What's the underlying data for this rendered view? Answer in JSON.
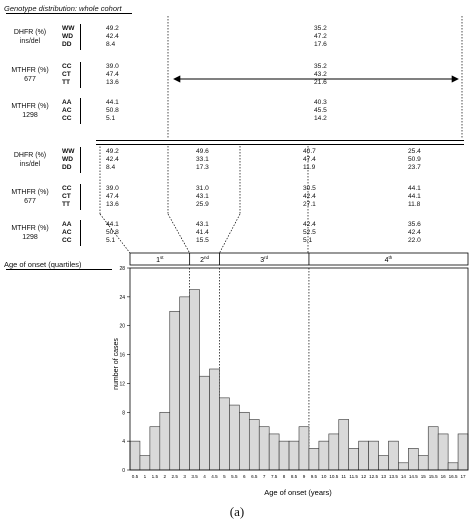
{
  "header": {
    "title": "Genotype distribution: whole cohort",
    "onset_label": "Age of onset (quartiles)"
  },
  "groups": [
    {
      "name_line1": "DHFR (%)",
      "name_line2": "ins/del",
      "genotypes": [
        "WW",
        "WD",
        "DD"
      ]
    },
    {
      "name_line1": "MTHFR (%)",
      "name_line2": "677",
      "genotypes": [
        "CC",
        "CT",
        "TT"
      ]
    },
    {
      "name_line1": "MTHFR (%)",
      "name_line2": "1298",
      "genotypes": [
        "AA",
        "AC",
        "CC"
      ]
    }
  ],
  "top_table": {
    "left": [
      [
        "49.2",
        "42.4",
        "8.4"
      ],
      [
        "39.0",
        "47.4",
        "13.6"
      ],
      [
        "44.1",
        "50.8",
        "5.1"
      ]
    ],
    "right": [
      [
        "35.2",
        "47.2",
        "17.6"
      ],
      [
        "35.2",
        "43.2",
        "21.6"
      ],
      [
        "40.3",
        "45.5",
        "14.2"
      ]
    ]
  },
  "bottom_table": {
    "columns": [
      [
        [
          "49.2",
          "42.4",
          "8.4"
        ],
        [
          "39.0",
          "47.4",
          "13.6"
        ],
        [
          "44.1",
          "50.8",
          "5.1"
        ]
      ],
      [
        [
          "49.6",
          "33.1",
          "17.3"
        ],
        [
          "31.0",
          "43.1",
          "25.9"
        ],
        [
          "43.1",
          "41.4",
          "15.5"
        ]
      ],
      [
        [
          "40.7",
          "47.4",
          "11.9"
        ],
        [
          "30.5",
          "42.4",
          "27.1"
        ],
        [
          "42.4",
          "52.5",
          "5.1"
        ]
      ],
      [
        [
          "25.4",
          "50.9",
          "23.7"
        ],
        [
          "44.1",
          "44.1",
          "11.8"
        ],
        [
          "35.6",
          "42.4",
          "22.0"
        ]
      ]
    ]
  },
  "quartiles": [
    {
      "base": "1",
      "sup": "st"
    },
    {
      "base": "2",
      "sup": "nd"
    },
    {
      "base": "3",
      "sup": "rd"
    },
    {
      "base": "4",
      "sup": "th"
    }
  ],
  "caption": "(a)",
  "chart_data": {
    "type": "bar",
    "xlabel": "Age of onset (years)",
    "ylabel": "number of cases",
    "ylim": [
      0,
      28
    ],
    "yticks": [
      0,
      4,
      8,
      12,
      16,
      20,
      24,
      28
    ],
    "grid": false,
    "categories": [
      "0.5",
      "1",
      "1.5",
      "2",
      "2.5",
      "3",
      "3.5",
      "4",
      "4.5",
      "5",
      "5.5",
      "6",
      "6.5",
      "7",
      "7.5",
      "8",
      "8.5",
      "9",
      "9.5",
      "10",
      "10.5",
      "11",
      "11.5",
      "12",
      "12.5",
      "13",
      "13.5",
      "14",
      "14.5",
      "15",
      "15.5",
      "16",
      "16.5",
      "17"
    ],
    "values": [
      4,
      2,
      6,
      8,
      22,
      24,
      25,
      13,
      14,
      10,
      9,
      8,
      7,
      6,
      5,
      4,
      4,
      6,
      3,
      4,
      5,
      7,
      3,
      4,
      4,
      2,
      4,
      1,
      3,
      2,
      6,
      5,
      1,
      5
    ],
    "quartile_boundaries": [
      3,
      4.5,
      9
    ]
  }
}
